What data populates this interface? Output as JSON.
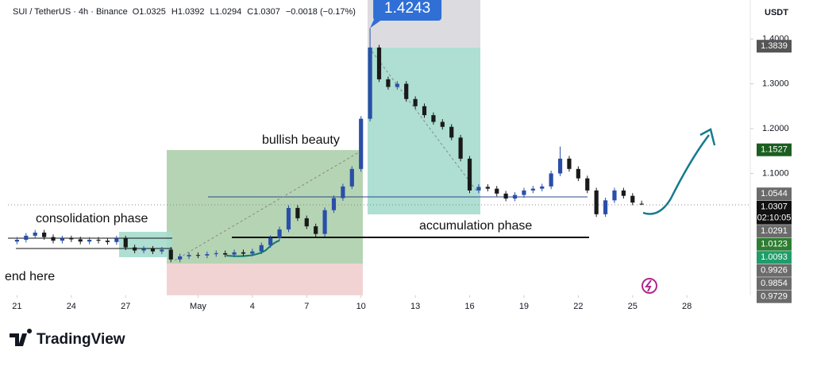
{
  "header": {
    "symbol": "SUI / TetherUS · 4h · Binance",
    "ohlc": [
      "O1.0325",
      "H1.0392",
      "L1.0294",
      "C1.0307"
    ],
    "change": "−0.0018 (−0.17%)"
  },
  "chart_data": {
    "type": "candlestick",
    "currency": "USDT",
    "annotations": {
      "bullish": "bullish beauty",
      "consolidation": "consolidation phase",
      "accumulation": "accumulation phase",
      "end": "end here"
    },
    "countdown": "02:10:05",
    "up_color": "#2a4fa8",
    "down_color": "#1a1a1a",
    "x": [
      0,
      0.5,
      1,
      1.5,
      2,
      2.5,
      3,
      3.5,
      4,
      4.5,
      5,
      5.5,
      6,
      6.5,
      7,
      7.5,
      8,
      8.5,
      9,
      9.5,
      10,
      10.5,
      11,
      11.5,
      12,
      12.5,
      13,
      13.5,
      14,
      14.5,
      15,
      15.5,
      16,
      16.5,
      17,
      17.5,
      18,
      18.5,
      19,
      19.5,
      20,
      20.5,
      21,
      21.5,
      22,
      22.5,
      23,
      23.5,
      24,
      24.5,
      25,
      25.5,
      26,
      26.5,
      27,
      27.5,
      28,
      28.5,
      29,
      29.5,
      30,
      30.5,
      31,
      31.5,
      32,
      32.5,
      33,
      33.5,
      34,
      34.5
    ],
    "open": [
      0.948,
      0.952,
      0.961,
      0.968,
      0.958,
      0.95,
      0.955,
      0.953,
      0.948,
      0.952,
      0.95,
      0.947,
      0.955,
      0.935,
      0.928,
      0.932,
      0.926,
      0.93,
      0.908,
      0.915,
      0.918,
      0.917,
      0.92,
      0.922,
      0.919,
      0.924,
      0.921,
      0.926,
      0.94,
      0.956,
      0.975,
      1.023,
      1.0,
      0.982,
      0.965,
      1.018,
      1.045,
      1.071,
      1.11,
      1.222,
      1.381,
      1.31,
      1.293,
      1.3,
      1.266,
      1.25,
      1.23,
      1.215,
      1.204,
      1.18,
      1.133,
      1.062,
      1.07,
      1.066,
      1.055,
      1.044,
      1.052,
      1.062,
      1.066,
      1.071,
      1.1,
      1.133,
      1.11,
      1.089,
      1.062,
      1.009,
      1.04,
      1.062,
      1.05,
      1.0325
    ],
    "high": [
      0.958,
      0.967,
      0.974,
      0.974,
      0.964,
      0.961,
      0.961,
      0.959,
      0.958,
      0.958,
      0.956,
      0.961,
      0.961,
      0.941,
      0.938,
      0.938,
      0.936,
      0.936,
      0.921,
      0.924,
      0.924,
      0.926,
      0.928,
      0.928,
      0.93,
      0.93,
      0.932,
      0.946,
      0.962,
      0.981,
      1.029,
      1.029,
      1.006,
      0.988,
      1.024,
      1.051,
      1.077,
      1.116,
      1.228,
      1.4243,
      1.387,
      1.316,
      1.306,
      1.306,
      1.272,
      1.256,
      1.236,
      1.221,
      1.21,
      1.186,
      1.139,
      1.076,
      1.076,
      1.072,
      1.061,
      1.058,
      1.068,
      1.072,
      1.077,
      1.106,
      1.16,
      1.139,
      1.116,
      1.095,
      1.068,
      1.046,
      1.068,
      1.068,
      1.056,
      1.0392
    ],
    "low": [
      0.942,
      0.946,
      0.955,
      0.952,
      0.944,
      0.944,
      0.947,
      0.942,
      0.942,
      0.944,
      0.941,
      0.941,
      0.929,
      0.922,
      0.922,
      0.92,
      0.92,
      0.902,
      0.902,
      0.909,
      0.911,
      0.911,
      0.914,
      0.913,
      0.913,
      0.915,
      0.915,
      0.92,
      0.934,
      0.95,
      0.969,
      0.994,
      0.976,
      0.959,
      0.959,
      1.012,
      1.039,
      1.065,
      1.104,
      1.216,
      1.304,
      1.287,
      1.287,
      1.26,
      1.244,
      1.224,
      1.209,
      1.198,
      1.174,
      1.127,
      1.056,
      1.056,
      1.06,
      1.049,
      1.038,
      1.038,
      1.046,
      1.056,
      1.06,
      1.065,
      1.094,
      1.104,
      1.083,
      1.056,
      1.003,
      1.003,
      1.034,
      1.044,
      1.029,
      1.0294
    ],
    "close": [
      0.952,
      0.961,
      0.968,
      0.958,
      0.95,
      0.955,
      0.953,
      0.948,
      0.952,
      0.95,
      0.947,
      0.955,
      0.935,
      0.928,
      0.932,
      0.926,
      0.93,
      0.908,
      0.915,
      0.918,
      0.917,
      0.92,
      0.922,
      0.919,
      0.924,
      0.921,
      0.926,
      0.94,
      0.956,
      0.975,
      1.023,
      1.0,
      0.982,
      0.965,
      1.018,
      1.045,
      1.071,
      1.11,
      1.222,
      1.381,
      1.31,
      1.293,
      1.3,
      1.266,
      1.25,
      1.23,
      1.215,
      1.204,
      1.18,
      1.133,
      1.062,
      1.07,
      1.066,
      1.055,
      1.044,
      1.052,
      1.062,
      1.066,
      1.071,
      1.1,
      1.133,
      1.11,
      1.089,
      1.062,
      1.009,
      1.04,
      1.062,
      1.05,
      1.035,
      1.0307
    ],
    "xlim": [
      -0.5,
      40.5
    ],
    "xticks": [
      {
        "value": 0,
        "label": "21"
      },
      {
        "value": 3,
        "label": "24"
      },
      {
        "value": 6,
        "label": "27"
      },
      {
        "value": 10,
        "label": "May"
      },
      {
        "value": 13,
        "label": "4"
      },
      {
        "value": 16,
        "label": "7"
      },
      {
        "value": 19,
        "label": "10"
      },
      {
        "value": 22,
        "label": "13"
      },
      {
        "value": 25,
        "label": "16"
      },
      {
        "value": 28,
        "label": "19"
      },
      {
        "value": 31,
        "label": "22"
      },
      {
        "value": 34,
        "label": "25"
      },
      {
        "value": 37,
        "label": "28"
      }
    ],
    "ylim": [
      0.828,
      1.487
    ],
    "yticks": [
      {
        "value": 1.1,
        "label": "1.1000"
      },
      {
        "value": 1.2,
        "label": "1.2000"
      },
      {
        "value": 1.3,
        "label": "1.3000"
      },
      {
        "value": 1.4,
        "label": "1.4000"
      }
    ],
    "price_labels": [
      {
        "value": 1.3839,
        "color": "#555555"
      },
      {
        "value": 1.1527,
        "color": "#1b5e20"
      },
      {
        "value": 1.0544,
        "color": "#6b6b6b"
      },
      {
        "value": 1.0307,
        "color": "#111111"
      },
      {
        "value": 1.0291,
        "color": "#6b6b6b"
      },
      {
        "value": 1.0123,
        "color": "#2e7d32"
      },
      {
        "value": 1.0093,
        "color": "#1f9d6a"
      },
      {
        "value": 0.9926,
        "color": "#6b6b6b"
      },
      {
        "value": 0.9854,
        "color": "#6b6b6b"
      },
      {
        "value": 0.9729,
        "color": "#6b6b6b"
      }
    ]
  },
  "footer": {
    "brand": "TradingView"
  }
}
